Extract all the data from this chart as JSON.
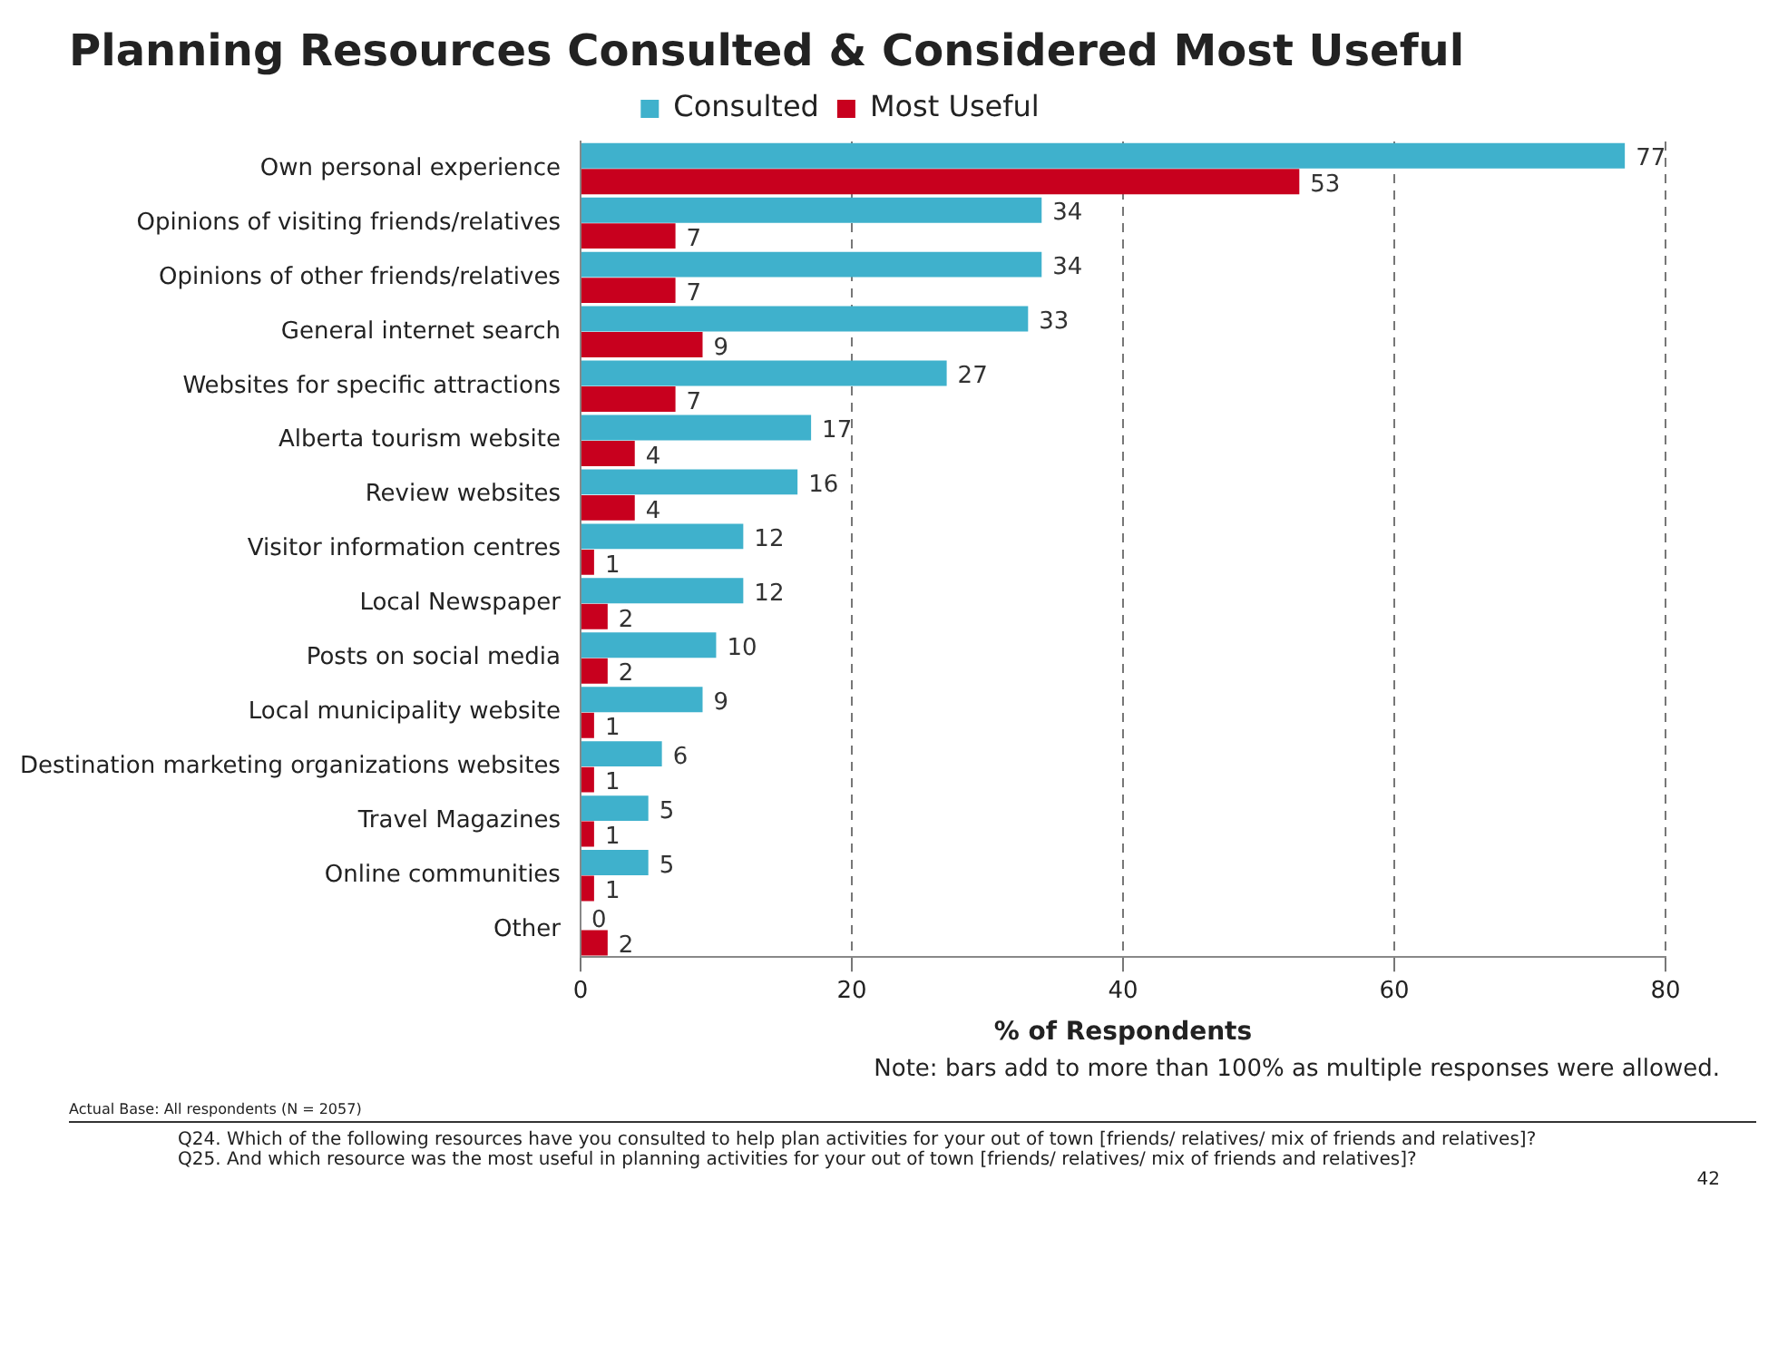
{
  "chart_data": {
    "type": "bar",
    "orientation": "horizontal",
    "title": "Planning Resources Consulted & Considered Most Useful",
    "xlabel": "% of Respondents",
    "categories": [
      "Own personal experience",
      "Opinions of visiting friends/relatives",
      "Opinions of other friends/relatives",
      "General internet search",
      "Websites for specific attractions",
      "Alberta tourism website",
      "Review websites",
      "Visitor information centres",
      "Local Newspaper",
      "Posts on social media",
      "Local municipality website",
      "Destination marketing organizations websites",
      "Travel Magazines",
      "Online communities",
      "Other"
    ],
    "series": [
      {
        "name": "Consulted",
        "color": "#3fb1cc",
        "values": [
          77,
          34,
          34,
          33,
          27,
          17,
          16,
          12,
          12,
          10,
          9,
          6,
          5,
          5,
          0
        ]
      },
      {
        "name": "Most Useful",
        "color": "#c8001e",
        "values": [
          53,
          7,
          7,
          9,
          7,
          4,
          4,
          1,
          2,
          2,
          1,
          1,
          1,
          1,
          2
        ]
      }
    ],
    "xlim": [
      0,
      80
    ],
    "xticks": [
      0,
      20,
      40,
      60,
      80
    ],
    "grid": "x",
    "legend": "top",
    "data_labels": true,
    "annotations": [
      "Note: bars add to more than 100% as multiple responses were allowed.",
      "Actual Base: All respondents (N = 2057)",
      "Q24.  Which of the following resources have you consulted to help plan activities for your out of town [friends/ relatives/ mix of friends and relatives]?",
      "Q25.  And which resource was the most useful in planning activities for your out of town [friends/ relatives/ mix of friends and relatives]?",
      "42"
    ]
  }
}
